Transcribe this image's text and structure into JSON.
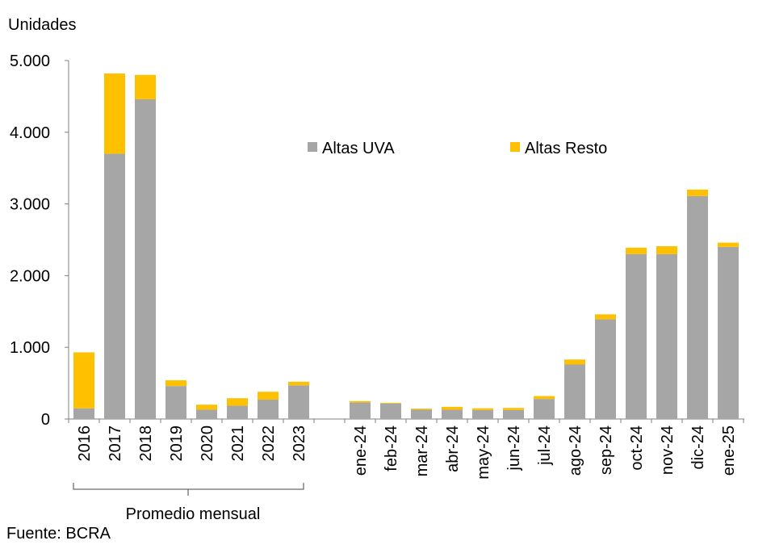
{
  "chart_data": {
    "type": "bar",
    "stacked": true,
    "ylabel": "Unidades",
    "source": "Fuente: BCRA",
    "group_label": "Promedio mensual",
    "ylim": [
      0,
      5000
    ],
    "yticks": [
      "0",
      "1.000",
      "2.000",
      "3.000",
      "4.000",
      "5.000"
    ],
    "ytick_values": [
      0,
      1000,
      2000,
      3000,
      4000,
      5000
    ],
    "legend_position": "top-center",
    "categories": [
      "2016",
      "2017",
      "2018",
      "2019",
      "2020",
      "2021",
      "2022",
      "2023",
      "ene-24",
      "feb-24",
      "mar-24",
      "abr-24",
      "may-24",
      "jun-24",
      "jul-24",
      "ago-24",
      "sep-24",
      "oct-24",
      "nov-24",
      "dic-24",
      "ene-25"
    ],
    "series": [
      {
        "name": "Altas UVA",
        "color": "#a6a6a6",
        "values": [
          150,
          3700,
          4460,
          460,
          130,
          185,
          270,
          470,
          230,
          215,
          130,
          130,
          125,
          125,
          280,
          760,
          1390,
          2300,
          2300,
          3110,
          2400
        ]
      },
      {
        "name": "Altas Resto",
        "color": "#ffc000",
        "values": [
          780,
          1120,
          340,
          80,
          70,
          105,
          110,
          50,
          20,
          10,
          15,
          40,
          25,
          30,
          40,
          70,
          70,
          90,
          110,
          90,
          60
        ]
      }
    ]
  }
}
